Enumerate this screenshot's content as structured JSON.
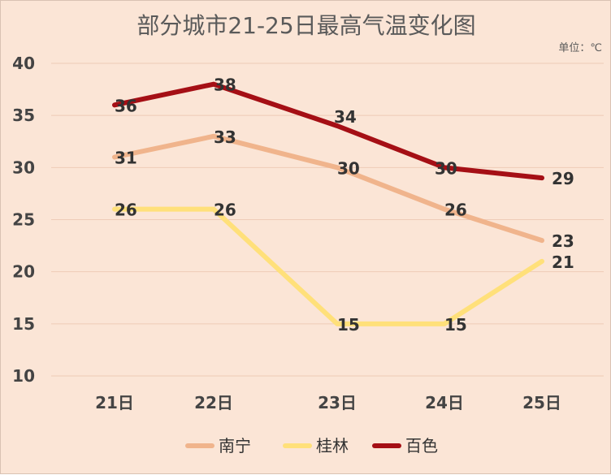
{
  "chart_data": {
    "type": "line",
    "title": "部分城市21-25日最高气温变化图",
    "unit_label": "单位：℃",
    "categories": [
      "21日",
      "22日",
      "23日",
      "24日",
      "25日"
    ],
    "ylim": [
      10,
      40
    ],
    "yticks": [
      10,
      15,
      20,
      25,
      30,
      35,
      40
    ],
    "grid": true,
    "legend_position": "bottom",
    "series": [
      {
        "name": "南宁",
        "color": "#f0b48c",
        "values": [
          31,
          33,
          30,
          26,
          23
        ]
      },
      {
        "name": "桂林",
        "color": "#ffe07a",
        "values": [
          26,
          26,
          15,
          15,
          21
        ]
      },
      {
        "name": "百色",
        "color": "#a50f15",
        "values": [
          36,
          38,
          34,
          30,
          29
        ]
      }
    ],
    "background_color": "#fbe5d6"
  }
}
